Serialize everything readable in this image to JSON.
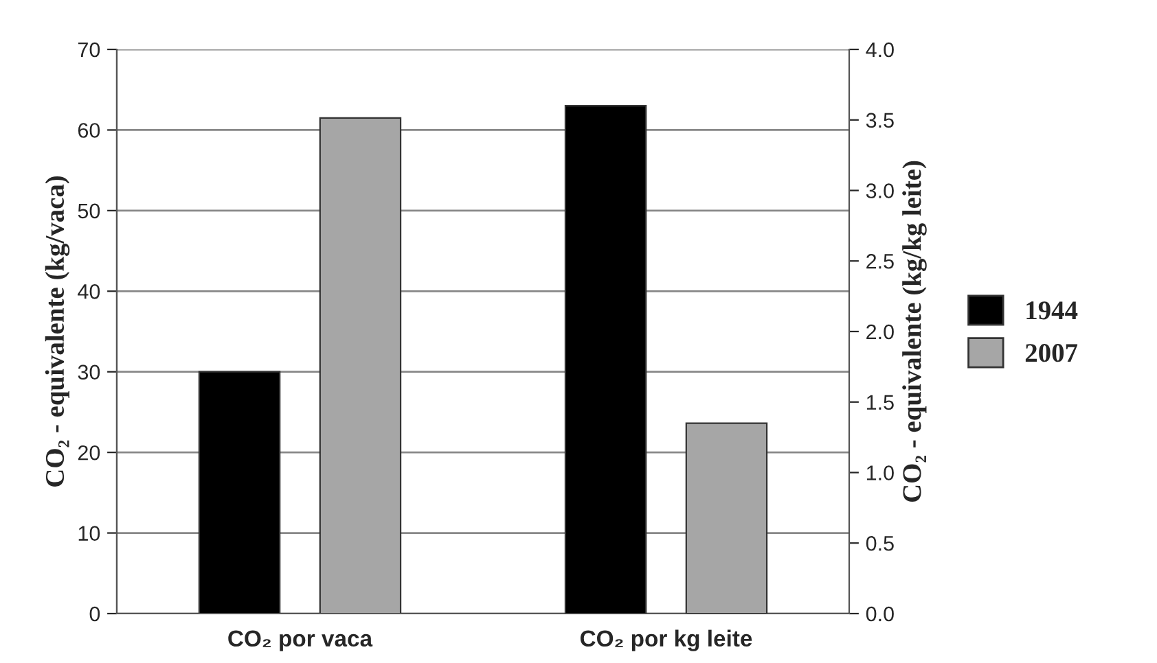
{
  "chart_data": {
    "type": "bar",
    "ylabel": "CO₂ - equivalente (kg/vaca)",
    "y2label": "CO₂ - equivalente (kg/kg leite)",
    "categories": [
      "CO₂ por vaca",
      "CO₂ por kg leite"
    ],
    "series": [
      {
        "name": "1944",
        "color": "#000000",
        "values": [
          30,
          null
        ]
      },
      {
        "name": "2007",
        "color": "#a6a6a6",
        "values": [
          61.5,
          null
        ]
      },
      {
        "color": "#000000",
        "axis": "y2",
        "values": [
          null,
          3.6
        ]
      },
      {
        "color": "#a6a6a6",
        "axis": "y2",
        "values": [
          null,
          1.35
        ]
      }
    ],
    "ylim": [
      0,
      70
    ],
    "yticks": [
      0,
      10,
      20,
      30,
      40,
      50,
      60,
      70
    ],
    "y2lim": [
      0,
      4.0
    ],
    "y2ticks": [
      {
        "value": 0,
        "label": "0.0"
      },
      0.5,
      {
        "value": 1,
        "label": "1.0"
      },
      1.5,
      {
        "value": 2,
        "label": "2.0"
      },
      2.5,
      {
        "value": 3,
        "label": "3.0"
      },
      3.5,
      {
        "value": 4,
        "label": "4.0"
      }
    ],
    "grid": "y",
    "legend": "right"
  }
}
